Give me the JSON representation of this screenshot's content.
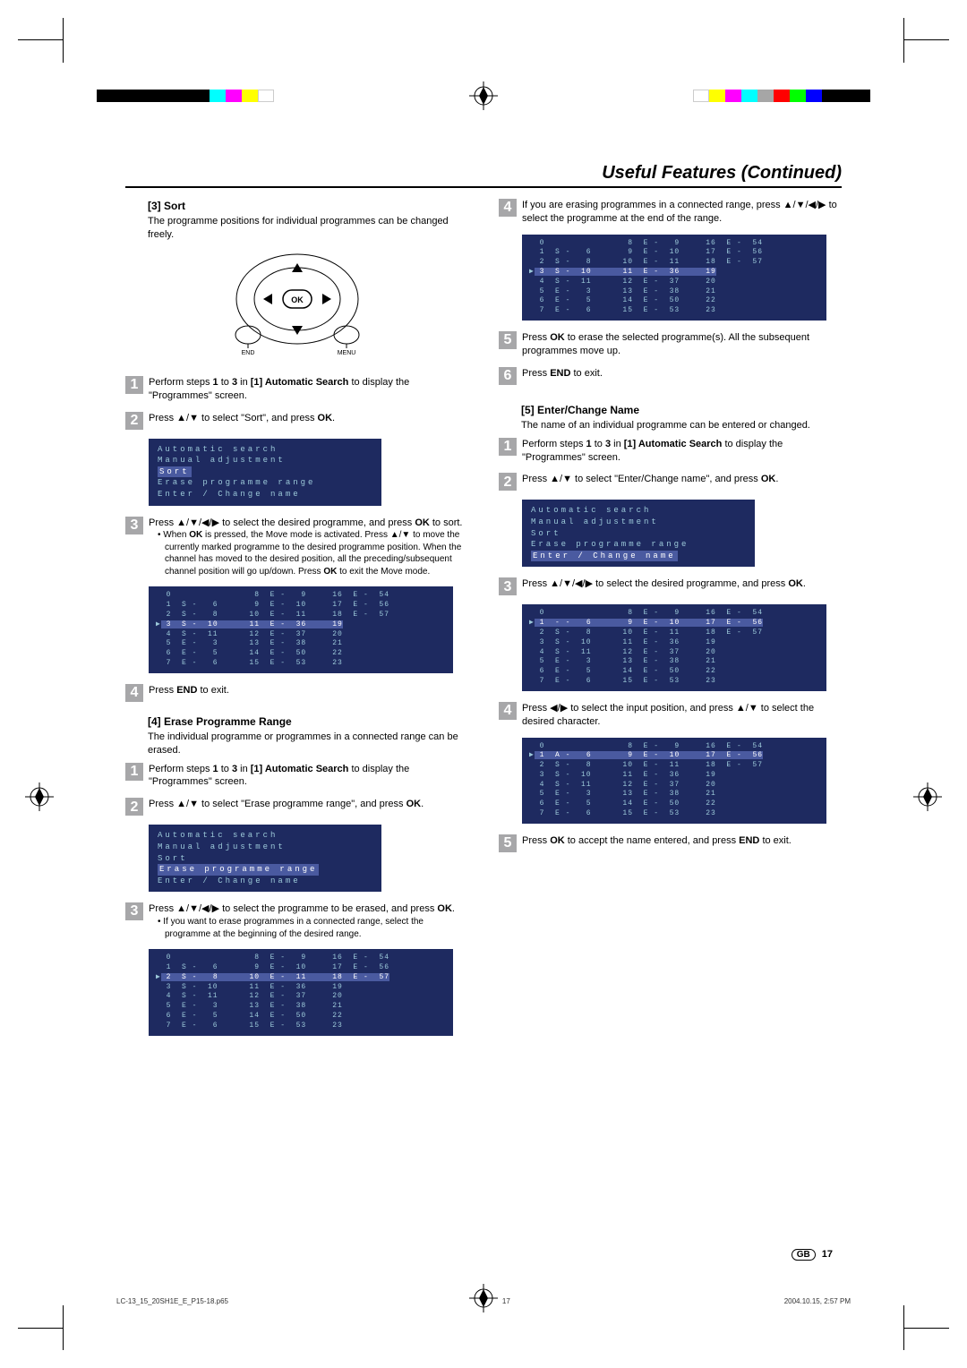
{
  "header_title": "Useful Features (Continued)",
  "colors": {
    "primary_box_bg": "#1e2a60",
    "primary_box_fg": "#9cc9d9",
    "highlight_bg": "#4a5aa0",
    "step_num_bg": "#a7a7a9",
    "top_bar_colors_left": [
      "#000000",
      "#000000",
      "#000000",
      "#000000",
      "#000000",
      "#000000",
      "#000000",
      "#00ffff",
      "#ff00ff",
      "#ffff00",
      "#ffffff"
    ],
    "top_bar_colors_right": [
      "#ffffff",
      "#ffff00",
      "#ff00ff",
      "#00ffff",
      "#a6a6a6",
      "#ff0000",
      "#00ff00",
      "#0000ff",
      "#000000",
      "#000000",
      "#000000"
    ]
  },
  "sort": {
    "heading": "[3] Sort",
    "intro": "The programme positions for individual programmes can be changed freely.",
    "remote_labels": {
      "end": "END",
      "menu": "MENU",
      "ok": "OK"
    },
    "step1": "Perform steps 1 to 3 in [1] Automatic Search to display the \"Programmes\" screen.",
    "step2": "Press ▲/▼ to select \"Sort\", and press OK.",
    "menu": [
      "Automatic search",
      "Manual adjustment",
      "Sort",
      "Erase programme range",
      "Enter / Change name"
    ],
    "menu_hl_index": 2,
    "step3_a": "Press ▲/▼/◀/▶ to select the desired programme, and press OK to sort.",
    "step3_bullet": "When OK is pressed, the Move mode is activated. Press ▲/▼ to move the currently marked programme to the desired programme position. When the channel has moved to the desired position, all the preceding/subsequent channel position will go up/down. Press OK to exit the Move mode.",
    "step4": "Press END to exit."
  },
  "erase_range": {
    "heading": "[4] Erase Programme Range",
    "intro": "The individual programme or programmes in a connected range can be erased.",
    "step1": "Perform steps 1 to 3 in [1] Automatic Search to display the \"Programmes\" screen.",
    "step2": "Press ▲/▼ to select \"Erase programme range\", and press OK.",
    "menu_hl_index": 3,
    "step3_a": "Press ▲/▼/◀/▶ to select the programme to be erased, and press OK.",
    "step3_bullet": "If you want to erase programmes in a connected range, select the programme at the beginning of the desired range.",
    "step4": "If you are erasing programmes in a connected range, press ▲/▼/◀/▶ to select the programme at the end of the range.",
    "step5": "Press OK to erase the selected programme(s). All the subsequent programmes move up.",
    "step6": "Press END to exit."
  },
  "enter_change": {
    "heading": "[5] Enter/Change Name",
    "intro": "The name of an individual programme can be entered or changed.",
    "step1": "Perform steps 1 to 3 in [1] Automatic Search to display the \"Programmes\" screen.",
    "step2": "Press ▲/▼ to select \"Enter/Change name\", and press OK.",
    "menu_hl_index": 4,
    "step3": "Press ▲/▼/◀/▶ to select the desired programme, and press OK.",
    "step4": "Press ◀/▶ to select the input position, and press ▲/▼ to select the desired character.",
    "step5": "Press OK to accept the name entered, and press END to exit."
  },
  "prog_tables": {
    "standard_rows": [
      " 0                8  E -   9     16  E -  54",
      " 1  S -   6       9  E -  10     17  E -  56",
      " 2  S -   8      10  E -  11     18  E -  57",
      " 3  S -  10      11  E -  36     19",
      " 4  S -  11      12  E -  37     20",
      " 5  E -   3      13  E -  38     21",
      " 6  E -   5      14  E -  50     22",
      " 7  E -   6      15  E -  53     23"
    ],
    "hl_row3": 3,
    "hl_row2": 2,
    "hl_row1": 1,
    "alt_first": " 1  A -   6       9  E -  10     17  E -  56",
    "alt_hl": " 1  - -   6       9  E -  10     17  E -  56"
  },
  "footer": {
    "gb": "GB",
    "page": "17"
  },
  "meta": {
    "file": "LC-13_15_20SH1E_E_P15-18.p65",
    "mid": "17",
    "date": "2004.10.15, 2:57 PM"
  }
}
